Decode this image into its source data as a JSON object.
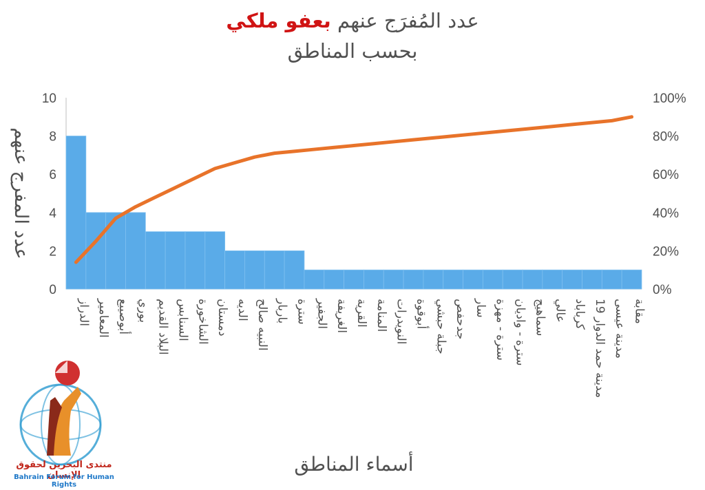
{
  "title": {
    "line1_prefix": "عدد المُفرَج عنهم",
    "line1_highlight": "بعفو ملكي",
    "line2": "بحسب المناطق"
  },
  "logo": {
    "text_ar": "منتدى البحرين لحقوق الإنسان",
    "text_en": "Bahrain Forum for Human Rights"
  },
  "colors": {
    "bar": "#5aabe8",
    "line": "#e8732a",
    "text": "#505050",
    "title_highlight": "#d01414"
  },
  "chart_data": {
    "type": "bar",
    "categories": [
      "الدراز",
      "المعامير",
      "أبوصيبع",
      "بوري",
      "البلاد القديم",
      "السنابس",
      "الشاخورة",
      "دمستان",
      "الديه",
      "النبيه صالح",
      "باربار",
      "سترة",
      "الجفير",
      "الغريفة",
      "القرية",
      "المنامة",
      "النويدرات",
      "أبوقوة",
      "جبلة حبشي",
      "جدحفص",
      "سار",
      "سترة - مهزة",
      "سترة - واديان",
      "سماهيج",
      "عالي",
      "كرباباد",
      "مدينة حمد الدوار 19",
      "مدينة عيسى",
      "مقابة"
    ],
    "series": [
      {
        "type": "bar",
        "values": [
          8,
          4,
          4,
          4,
          3,
          3,
          3,
          3,
          2,
          2,
          2,
          2,
          1,
          1,
          1,
          1,
          1,
          1,
          1,
          1,
          1,
          1,
          1,
          1,
          1,
          1,
          1,
          1,
          1
        ]
      },
      {
        "type": "line",
        "axis": "right",
        "values": [
          14,
          25,
          37,
          43,
          48,
          53,
          58,
          63,
          66,
          69,
          71,
          72,
          73,
          74,
          75,
          76,
          77,
          78,
          79,
          80,
          81,
          82,
          83,
          84,
          85,
          86,
          87,
          88,
          90
        ]
      }
    ],
    "y_left": {
      "min": 0,
      "max": 10,
      "ticks": [
        "0",
        "2",
        "4",
        "6",
        "8",
        "10"
      ]
    },
    "y_right": {
      "min": 0,
      "max": 100,
      "ticks": [
        "0%",
        "20%",
        "40%",
        "60%",
        "80%",
        "100%"
      ]
    },
    "ylabel": "عدد المفرج عنهم",
    "xlabel": "أسماء المناطق",
    "grid": false,
    "legend": "none"
  }
}
